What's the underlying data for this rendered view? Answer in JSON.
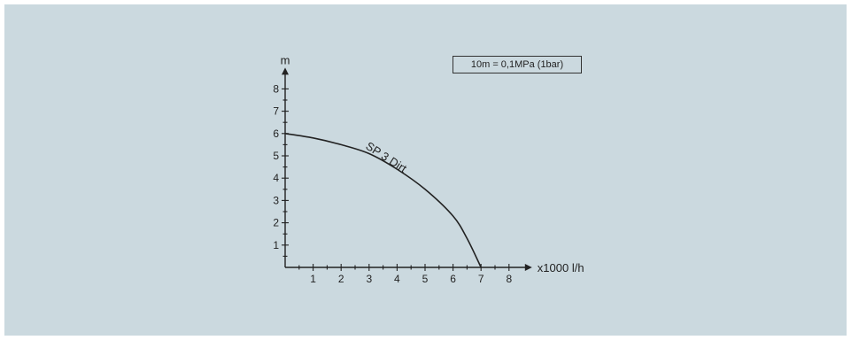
{
  "chart_data": {
    "type": "line",
    "xlabel": "x1000 l/h",
    "ylabel": "m",
    "xlim": [
      0,
      8
    ],
    "ylim": [
      0,
      8
    ],
    "x_ticks": [
      1,
      2,
      3,
      4,
      5,
      6,
      7,
      8
    ],
    "y_ticks": [
      1,
      2,
      3,
      4,
      5,
      6,
      7,
      8
    ],
    "grid": false,
    "annotation": "10m = 0,1MPa (1bar)",
    "series": [
      {
        "name": "SP 3 Dirt",
        "color": "#222222",
        "x": [
          0,
          1,
          2,
          3,
          4,
          5,
          6,
          6.5,
          7
        ],
        "y": [
          6.0,
          5.8,
          5.5,
          5.1,
          4.4,
          3.5,
          2.3,
          1.3,
          0
        ]
      }
    ]
  }
}
